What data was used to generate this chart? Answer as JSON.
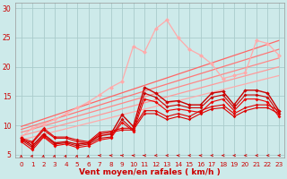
{
  "xlabel": "Vent moyen/en rafales ( km/h )",
  "xlim": [
    -0.5,
    23.5
  ],
  "ylim": [
    4.5,
    31
  ],
  "yticks": [
    5,
    10,
    15,
    20,
    25,
    30
  ],
  "xticks": [
    0,
    1,
    2,
    3,
    4,
    5,
    6,
    7,
    8,
    9,
    10,
    11,
    12,
    13,
    14,
    15,
    16,
    17,
    18,
    19,
    20,
    21,
    22,
    23
  ],
  "bg_color": "#cdeaea",
  "grid_color": "#aacccc",
  "linear_lines": [
    {
      "x0": 0,
      "y0": 7.5,
      "x1": 23,
      "y1": 18.5,
      "color": "#ffaaaa",
      "lw": 0.9
    },
    {
      "x0": 0,
      "y0": 8.2,
      "x1": 23,
      "y1": 20.0,
      "color": "#ff9999",
      "lw": 0.9
    },
    {
      "x0": 0,
      "y0": 8.8,
      "x1": 23,
      "y1": 21.5,
      "color": "#ff8888",
      "lw": 0.9
    },
    {
      "x0": 0,
      "y0": 9.3,
      "x1": 23,
      "y1": 23.0,
      "color": "#ff7777",
      "lw": 0.9
    },
    {
      "x0": 0,
      "y0": 9.8,
      "x1": 23,
      "y1": 24.5,
      "color": "#ff6666",
      "lw": 0.9
    }
  ],
  "jagged_lines": [
    {
      "x": [
        0,
        1,
        2,
        3,
        4,
        5,
        6,
        7,
        8,
        9,
        10,
        11,
        12,
        13,
        14,
        15,
        16,
        17,
        18,
        19,
        20,
        21,
        22,
        23
      ],
      "y": [
        8.0,
        9.5,
        10.2,
        11.0,
        12.0,
        13.0,
        14.0,
        15.2,
        16.5,
        17.5,
        23.5,
        22.5,
        26.5,
        28.0,
        25.0,
        23.0,
        22.0,
        20.5,
        18.0,
        18.5,
        19.0,
        24.5,
        24.0,
        22.0
      ],
      "color": "#ffaaaa",
      "lw": 0.9,
      "marker": "D",
      "ms": 2.5
    },
    {
      "x": [
        0,
        1,
        2,
        3,
        4,
        5,
        6,
        7,
        8,
        9,
        10,
        11,
        12,
        13,
        14,
        15,
        16,
        17,
        18,
        19,
        20,
        21,
        22,
        23
      ],
      "y": [
        7.8,
        6.5,
        8.5,
        7.0,
        7.2,
        6.8,
        7.0,
        8.2,
        8.5,
        11.8,
        9.8,
        16.5,
        15.5,
        14.0,
        14.2,
        13.5,
        13.5,
        15.5,
        15.8,
        13.5,
        16.0,
        16.0,
        15.5,
        12.5
      ],
      "color": "#cc0000",
      "lw": 1.0,
      "marker": "D",
      "ms": 2.2
    },
    {
      "x": [
        0,
        1,
        2,
        3,
        4,
        5,
        6,
        7,
        8,
        9,
        10,
        11,
        12,
        13,
        14,
        15,
        16,
        17,
        18,
        19,
        20,
        21,
        22,
        23
      ],
      "y": [
        7.5,
        6.2,
        8.2,
        6.8,
        7.0,
        6.5,
        6.8,
        7.8,
        8.0,
        11.0,
        9.2,
        15.5,
        14.8,
        13.2,
        13.5,
        13.0,
        13.0,
        14.8,
        15.2,
        13.0,
        15.2,
        15.2,
        14.8,
        12.0
      ],
      "color": "#cc0000",
      "lw": 0.8,
      "marker": "D",
      "ms": 2.0
    },
    {
      "x": [
        0,
        1,
        2,
        3,
        4,
        5,
        6,
        7,
        8,
        9,
        10,
        11,
        12,
        13,
        14,
        15,
        16,
        17,
        18,
        19,
        20,
        21,
        22,
        23
      ],
      "y": [
        7.2,
        5.8,
        8.0,
        6.5,
        6.8,
        6.2,
        6.5,
        7.5,
        7.8,
        10.5,
        9.0,
        14.5,
        14.0,
        12.5,
        12.8,
        12.5,
        12.2,
        14.0,
        14.5,
        12.5,
        14.5,
        14.5,
        14.0,
        11.5
      ],
      "color": "#ee0000",
      "lw": 0.8,
      "marker": "D",
      "ms": 2.0
    },
    {
      "x": [
        0,
        1,
        2,
        3,
        4,
        5,
        6,
        7,
        8,
        9,
        10,
        11,
        12,
        13,
        14,
        15,
        16,
        17,
        18,
        19,
        20,
        21,
        22,
        23
      ],
      "y": [
        7.8,
        7.2,
        9.5,
        8.0,
        8.0,
        7.5,
        7.2,
        8.8,
        9.0,
        9.5,
        9.5,
        12.5,
        12.5,
        11.5,
        12.0,
        11.5,
        12.5,
        13.2,
        13.5,
        12.0,
        13.0,
        13.5,
        13.5,
        12.5
      ],
      "color": "#dd0000",
      "lw": 0.8,
      "marker": "D",
      "ms": 1.8
    },
    {
      "x": [
        0,
        1,
        2,
        3,
        4,
        5,
        6,
        7,
        8,
        9,
        10,
        11,
        12,
        13,
        14,
        15,
        16,
        17,
        18,
        19,
        20,
        21,
        22,
        23
      ],
      "y": [
        7.5,
        7.0,
        9.2,
        7.8,
        7.8,
        7.2,
        7.0,
        8.5,
        8.8,
        9.2,
        9.2,
        12.0,
        12.0,
        11.0,
        11.5,
        11.0,
        12.0,
        12.8,
        13.0,
        11.5,
        12.5,
        13.0,
        13.0,
        12.0
      ],
      "color": "#dd0000",
      "lw": 0.8,
      "marker": "D",
      "ms": 1.8
    }
  ],
  "arrows": {
    "y_data": 4.85,
    "color": "#cc0000",
    "angles_deg": [
      90,
      70,
      80,
      75,
      70,
      75,
      80,
      180,
      180,
      180,
      180,
      180,
      190,
      185,
      180,
      185,
      180,
      185,
      185,
      185,
      185,
      185,
      185,
      185
    ]
  }
}
